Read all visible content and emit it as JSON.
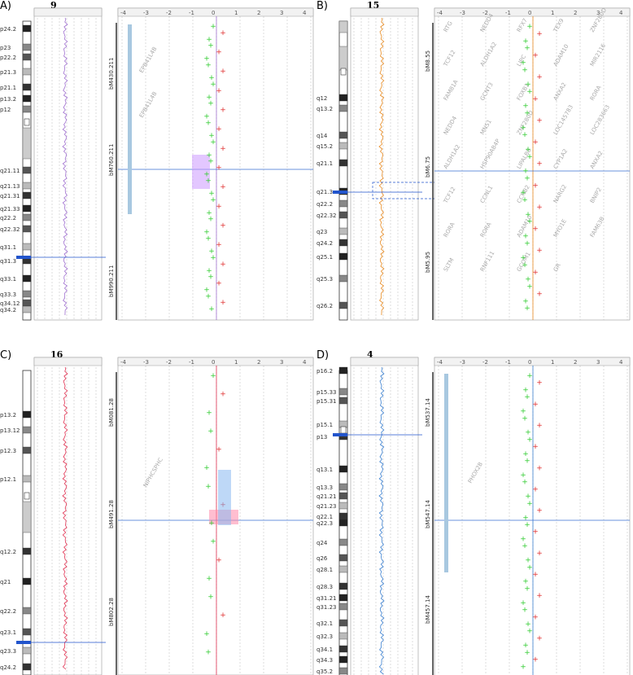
{
  "panels": [
    {
      "label": "A)",
      "chromosome": "9",
      "line_color": "#a070d0",
      "genome_hl_color": "#cc99ff",
      "bands": [
        "p24.2",
        "p23",
        "p22.2",
        "p21.3",
        "p21.1",
        "p13.2",
        "p12",
        "q21.11",
        "q21.13",
        "q21.31",
        "q21.33",
        "q22.2",
        "q22.32",
        "q31.1",
        "q31.3",
        "q33.1",
        "q33.3",
        "q34.12",
        "q34.2"
      ],
      "scale_labels": [
        "-4",
        "-3",
        "-2",
        "-1",
        "0",
        "1",
        "2",
        "3",
        "4"
      ],
      "bacs": [
        "bM430.211",
        "bM760.211",
        "bM990.211"
      ],
      "genes": [
        "EPB41L4B",
        "EPB41L4B"
      ],
      "markers": [
        "+",
        "+",
        "+",
        "+",
        "+",
        "+",
        "+",
        "+",
        "+",
        "+",
        "+",
        "+",
        "+",
        "+",
        "+",
        "+",
        "+",
        "+",
        "+",
        "+",
        "+",
        "+",
        "+",
        "+",
        "+",
        "+",
        "+",
        "+",
        "+",
        "+",
        "+",
        "+",
        "+",
        "+",
        "+",
        "+",
        "+",
        "+",
        "+",
        "+",
        "+",
        "+",
        "+",
        "+",
        "+"
      ]
    },
    {
      "label": "B)",
      "chromosome": "15",
      "line_color": "#e88a20",
      "genome_hl_color": "#f0a060",
      "bands": [
        "q12",
        "q13.2",
        "q14",
        "q15.2",
        "q21.1",
        "q21.3",
        "q22.2",
        "q22.32",
        "q23",
        "q24.2",
        "q25.1",
        "q25.3",
        "q26.2"
      ],
      "scale_labels": [
        "-4",
        "-3",
        "-2",
        "-1",
        "0",
        "1",
        "2",
        "3",
        "4"
      ],
      "bacs": [
        "bM8.55",
        "bM6.75",
        "bM5.95"
      ],
      "genes": [
        "RTG",
        "NEDD4",
        "RFX7",
        "TEX9",
        "ZNF280D",
        "TCF12",
        "ALDH1A2",
        "LIPC",
        "ADAM10",
        "MIR2116",
        "FAM81A",
        "GCNT3",
        "FOXB1",
        "ANXA2",
        "RORA",
        "NEDD4",
        "MNS1",
        "ZNF280D",
        "LOC145783",
        "LOC283663",
        "ALDH1A2",
        "HSP90AB4P",
        "LIPALB8",
        "CYP1A2",
        "ANXA2",
        "TCF12",
        "CCNL1",
        "CCNB2",
        "NARG2",
        "BNIP2",
        "RORA",
        "RORA",
        "ADAM10",
        "MYO1E",
        "FAM63B",
        "SLTM",
        "RNF111",
        "GCOM1",
        "GR"
      ],
      "markers": [
        "+",
        "+",
        "+",
        "+",
        "+",
        "+",
        "+",
        "+",
        "+",
        "+",
        "+",
        "+",
        "+",
        "+",
        "+",
        "+",
        "+",
        "+",
        "+",
        "+",
        "+",
        "+",
        "+",
        "+",
        "+",
        "+",
        "+",
        "+",
        "+",
        "+",
        "+",
        "+",
        "+",
        "+",
        "+",
        "+",
        "+",
        "+",
        "+",
        "+"
      ]
    },
    {
      "label": "C)",
      "chromosome": "16",
      "line_color": "#e03050",
      "genome_hl_color": "#ff88aa",
      "bands": [
        "p13.2",
        "p13.12",
        "p12.3",
        "p12.1",
        "q12.2",
        "q21",
        "q22.2",
        "q23.1",
        "q23.3",
        "q24.2"
      ],
      "scale_labels": [
        "-4",
        "-3",
        "-2",
        "-1",
        "0",
        "1",
        "2",
        "3",
        "4"
      ],
      "bacs": [
        "bM081.28",
        "bM491.28",
        "bM802.28"
      ],
      "genes": [
        "NIPHCSPHC"
      ],
      "markers": [
        "+",
        "+",
        "+",
        "+",
        "+",
        "+",
        "+",
        "+",
        "+",
        "+",
        "+",
        "+",
        "+",
        "+",
        "+",
        "+"
      ]
    },
    {
      "label": "D)",
      "chromosome": "4",
      "line_color": "#3a7fd0",
      "genome_hl_color": "#88b8f0",
      "bands": [
        "p16.2",
        "p15.33",
        "p15.31",
        "p15.1",
        "p13",
        "q13.1",
        "q13.3",
        "q21.21",
        "q21.23",
        "q22.1",
        "q22.3",
        "q24",
        "q26",
        "q28.1",
        "q28.3",
        "q31.21",
        "q31.23",
        "q32.1",
        "q32.3",
        "q34.1",
        "q34.3",
        "q35.2"
      ],
      "scale_labels": [
        "-4",
        "-3",
        "-2",
        "-1",
        "0",
        "1",
        "2",
        "3",
        "4"
      ],
      "bacs": [
        "bM537.14",
        "bM547.14",
        "bM457.14"
      ],
      "genes": [
        "PHOX2B"
      ],
      "markers": [
        "+",
        "+",
        "+",
        "+",
        "+",
        "+",
        "+",
        "+",
        "+",
        "+",
        "+",
        "+",
        "+",
        "+",
        "+",
        "+",
        "+",
        "+",
        "+",
        "+",
        "+",
        "+",
        "+",
        "+",
        "+",
        "+",
        "+",
        "+",
        "+",
        "+",
        "+",
        "+",
        "+",
        "+",
        "+",
        "+",
        "+",
        "+",
        "+",
        "+",
        "+",
        "+"
      ]
    }
  ]
}
